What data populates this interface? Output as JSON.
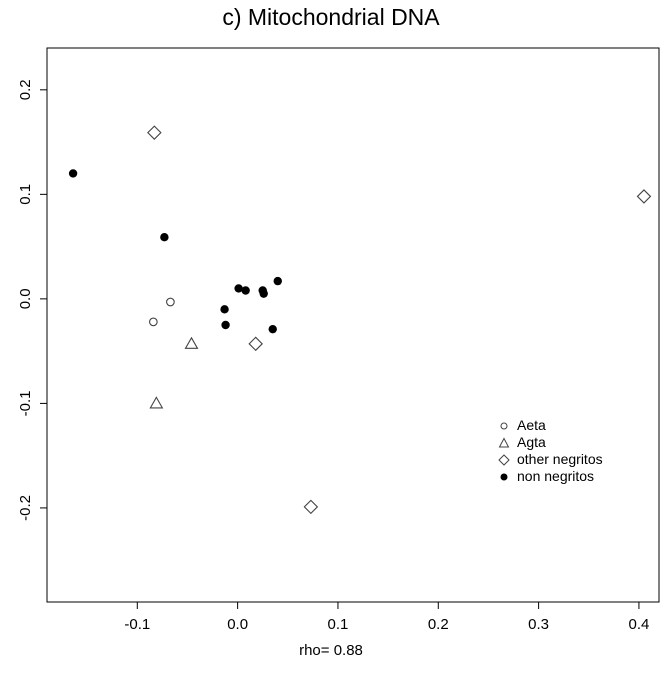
{
  "chart_data": {
    "type": "scatter",
    "title": "c) Mitochondrial DNA",
    "xlabel": "rho= 0.88",
    "ylabel": "",
    "xlim": [
      -0.19,
      0.42
    ],
    "ylim": [
      -0.29,
      0.24
    ],
    "xticks": [
      -0.1,
      0.0,
      0.1,
      0.2,
      0.3,
      0.4
    ],
    "xtick_labels": [
      "-0.1",
      "0.0",
      "0.1",
      "0.2",
      "0.3",
      "0.4"
    ],
    "yticks": [
      -0.2,
      -0.1,
      0.0,
      0.1,
      0.2
    ],
    "ytick_labels": [
      "-0.2",
      "-0.1",
      "0.0",
      "0.1",
      "0.2"
    ],
    "grid": false,
    "legend_position": "right",
    "series": [
      {
        "name": "Aeta",
        "marker": "open-circle",
        "color": "#444444",
        "points": [
          [
            -0.067,
            -0.003
          ],
          [
            -0.084,
            -0.022
          ]
        ]
      },
      {
        "name": "Agta",
        "marker": "open-triangle",
        "color": "#444444",
        "points": [
          [
            -0.046,
            -0.043
          ],
          [
            -0.081,
            -0.1
          ]
        ]
      },
      {
        "name": "other negritos",
        "marker": "open-diamond",
        "color": "#444444",
        "points": [
          [
            -0.083,
            0.159
          ],
          [
            0.018,
            -0.043
          ],
          [
            0.073,
            -0.199
          ],
          [
            0.405,
            0.098
          ]
        ]
      },
      {
        "name": "non negritos",
        "marker": "filled-circle",
        "color": "#000000",
        "points": [
          [
            -0.164,
            0.12
          ],
          [
            -0.073,
            0.059
          ],
          [
            0.001,
            0.01
          ],
          [
            0.008,
            0.008
          ],
          [
            0.025,
            0.008
          ],
          [
            0.026,
            0.005
          ],
          [
            0.04,
            0.017
          ],
          [
            -0.013,
            -0.01
          ],
          [
            -0.012,
            -0.025
          ],
          [
            0.035,
            -0.029
          ]
        ]
      }
    ]
  }
}
